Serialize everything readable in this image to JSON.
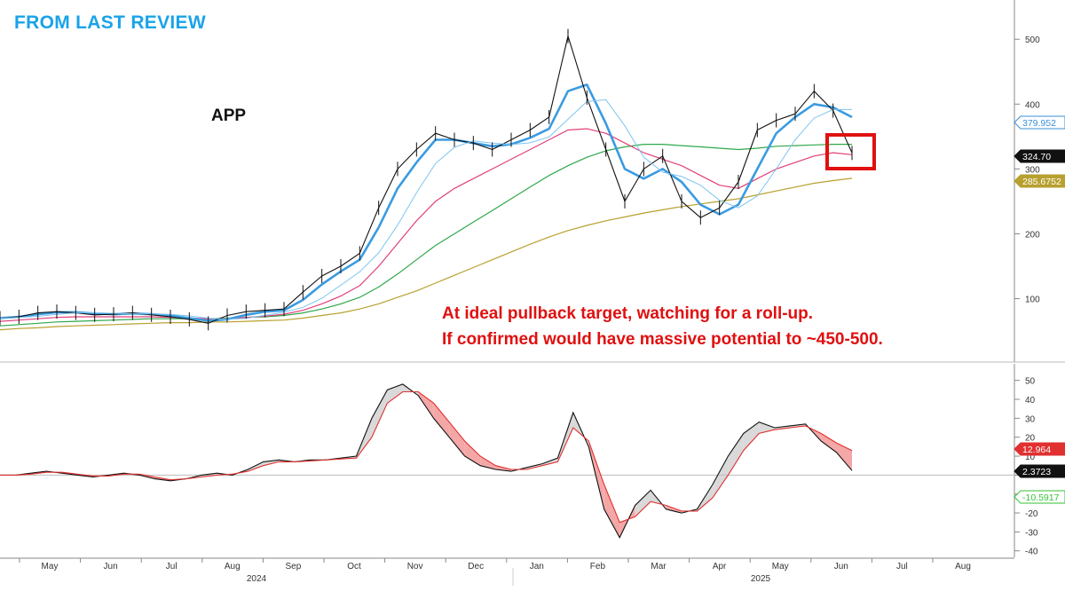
{
  "header": {
    "label": "FROM LAST REVIEW"
  },
  "chart_data": [
    {
      "type": "line",
      "title": "APP",
      "annotations": [
        "At ideal pullback target, watching for a roll-up.",
        "If confirmed would have massive potential to ~450-500."
      ],
      "x_tick_labels": [
        "May",
        "Jun",
        "Jul",
        "Aug",
        "Sep",
        "Oct",
        "Nov",
        "Dec",
        "Jan",
        "Feb",
        "Mar",
        "Apr",
        "May",
        "Jun",
        "Jul",
        "Aug"
      ],
      "year_labels": [
        "2024",
        "2025"
      ],
      "y_ticks": [
        100,
        200,
        300,
        400,
        500
      ],
      "ylim": [
        20,
        540
      ],
      "price_tags": [
        {
          "value": "379.952",
          "color": "#3a8fd8"
        },
        {
          "value": "324.70",
          "color": "#111111"
        },
        {
          "value": "285.6752",
          "color": "#b8a030"
        }
      ],
      "series": [
        {
          "color": "#111111",
          "values": [
            70,
            72,
            78,
            80,
            78,
            75,
            76,
            78,
            75,
            72,
            68,
            62,
            74,
            80,
            82,
            84,
            110,
            135,
            150,
            170,
            240,
            300,
            330,
            355,
            345,
            340,
            330,
            345,
            360,
            380,
            505,
            410,
            330,
            250,
            300,
            320,
            250,
            225,
            240,
            280,
            360,
            375,
            385,
            420,
            390,
            324.7
          ]
        },
        {
          "color": "#3a9be0",
          "values": [
            70,
            72,
            76,
            79,
            79,
            77,
            76,
            77,
            76,
            74,
            70,
            66,
            68,
            75,
            80,
            82,
            98,
            122,
            142,
            160,
            210,
            270,
            310,
            345,
            345,
            340,
            335,
            338,
            348,
            362,
            420,
            430,
            370,
            300,
            285,
            300,
            280,
            245,
            230,
            245,
            300,
            355,
            380,
            400,
            395,
            379.952
          ]
        },
        {
          "color": "#e0407a",
          "values": [
            65,
            67,
            69,
            71,
            72,
            72,
            72,
            72,
            72,
            71,
            70,
            69,
            69,
            71,
            73,
            76,
            82,
            92,
            104,
            120,
            150,
            185,
            220,
            250,
            270,
            285,
            300,
            315,
            330,
            345,
            360,
            362,
            355,
            340,
            325,
            315,
            305,
            290,
            275,
            270,
            285,
            300,
            310,
            320,
            325,
            322
          ]
        },
        {
          "color": "#2ea84a",
          "values": [
            58,
            60,
            62,
            64,
            65,
            66,
            67,
            68,
            69,
            69,
            69,
            69,
            70,
            71,
            72,
            74,
            78,
            84,
            92,
            102,
            118,
            138,
            160,
            182,
            200,
            218,
            236,
            254,
            272,
            290,
            305,
            318,
            328,
            334,
            338,
            338,
            336,
            334,
            332,
            330,
            332,
            335,
            336,
            337,
            338,
            338
          ]
        },
        {
          "color": "#b8a030",
          "values": [
            52,
            54,
            55,
            57,
            58,
            59,
            60,
            61,
            62,
            63,
            63,
            64,
            64,
            65,
            66,
            67,
            70,
            74,
            78,
            84,
            92,
            102,
            112,
            124,
            136,
            148,
            160,
            172,
            184,
            195,
            205,
            213,
            220,
            226,
            232,
            237,
            242,
            246,
            250,
            254,
            260,
            266,
            272,
            278,
            282,
            285.6752
          ]
        }
      ]
    },
    {
      "type": "line",
      "ylim": [
        -42,
        55
      ],
      "y_ticks": [
        -40,
        -30,
        -20,
        -10,
        0,
        10,
        20,
        30,
        40,
        50
      ],
      "value_tags": [
        {
          "value": "12.964",
          "color": "#e03030"
        },
        {
          "value": "2.3723",
          "color": "#111111"
        },
        {
          "value": "-10.5917",
          "color": "#36c236"
        }
      ],
      "series": [
        {
          "color": "#111111",
          "values": [
            0,
            0,
            1,
            2,
            1,
            0,
            -1,
            0,
            1,
            0,
            -2,
            -3,
            -2,
            0,
            1,
            0,
            3,
            7,
            8,
            7,
            8,
            8,
            9,
            10,
            30,
            45,
            48,
            42,
            30,
            20,
            10,
            5,
            3,
            2,
            4,
            6,
            9,
            33,
            15,
            -18,
            -33,
            -16,
            -8,
            -18,
            -20,
            -18,
            -5,
            10,
            22,
            28,
            25,
            26,
            27,
            18,
            12,
            2.3723
          ]
        },
        {
          "color": "#e03030",
          "values": [
            0,
            0,
            0.5,
            1.5,
            1.5,
            0.5,
            -0.5,
            -0.5,
            0.5,
            0.5,
            -1,
            -2.5,
            -2,
            -1,
            0,
            0.5,
            2,
            5,
            7,
            7,
            7.5,
            8,
            8.5,
            9,
            20,
            38,
            44,
            44,
            38,
            28,
            18,
            10,
            5,
            3,
            3,
            5,
            7,
            25,
            18,
            -5,
            -25,
            -22,
            -14,
            -16,
            -19,
            -19,
            -12,
            0,
            13,
            22,
            24,
            25,
            26,
            22,
            17,
            12.964
          ]
        }
      ]
    }
  ]
}
